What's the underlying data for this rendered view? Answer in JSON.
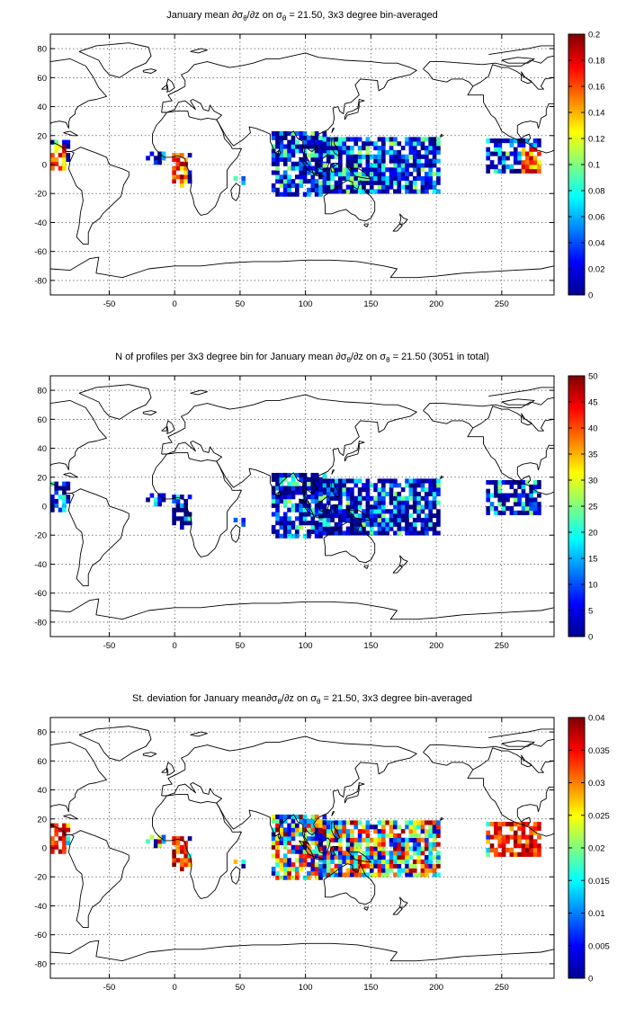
{
  "panels": [
    {
      "title": "January mean ∂σθ/∂z on σθ = 21.50, 3x3 degree bin-averaged",
      "title_parts": {
        "a": "January mean ∂σ",
        "s1": "θ",
        "b": "/∂z on σ",
        "s2": "θ",
        "c": " = 21.50, 3x3 degree bin-averaged"
      },
      "colorbar": {
        "min": 0,
        "max": 0.2,
        "ticks": [
          "0",
          "0.02",
          "0.04",
          "0.06",
          "0.08",
          "0.1",
          "0.12",
          "0.14",
          "0.16",
          "0.18",
          "0.2"
        ]
      }
    },
    {
      "title": "N of profiles per 3x3 degree bin for January mean ∂σθ/∂z on σθ = 21.50 (3051 in total)",
      "title_parts": {
        "a": "N of profiles per 3x3 degree bin for January mean ∂σ",
        "s1": "θ",
        "b": "/∂z on σ",
        "s2": "θ",
        "c": " = 21.50 (3051 in total)"
      },
      "colorbar": {
        "min": 0,
        "max": 50,
        "ticks": [
          "0",
          "5",
          "10",
          "15",
          "20",
          "25",
          "30",
          "35",
          "40",
          "45",
          "50"
        ]
      }
    },
    {
      "title": "St. deviation for January mean ∂σθ/∂z on σθ = 21.50, 3x3 degree bin-averaged",
      "title_parts": {
        "a": "St. deviation for January mean∂σ",
        "s1": "θ",
        "b": "/∂z on σ",
        "s2": "θ",
        "c": " = 21.50, 3x3 degree bin-averaged"
      },
      "colorbar": {
        "min": 0,
        "max": 0.04,
        "ticks": [
          "0",
          "0.005",
          "0.01",
          "0.015",
          "0.02",
          "0.025",
          "0.03",
          "0.035",
          "0.04"
        ]
      }
    }
  ],
  "axes": {
    "x_ticks": [
      "-50",
      "0",
      "50",
      "100",
      "150",
      "200",
      "250"
    ],
    "y_ticks": [
      "80",
      "60",
      "40",
      "20",
      "0",
      "-20",
      "-40",
      "-60",
      "-80"
    ],
    "xlim": [
      -95,
      290
    ],
    "ylim": [
      -90,
      90
    ]
  }
}
